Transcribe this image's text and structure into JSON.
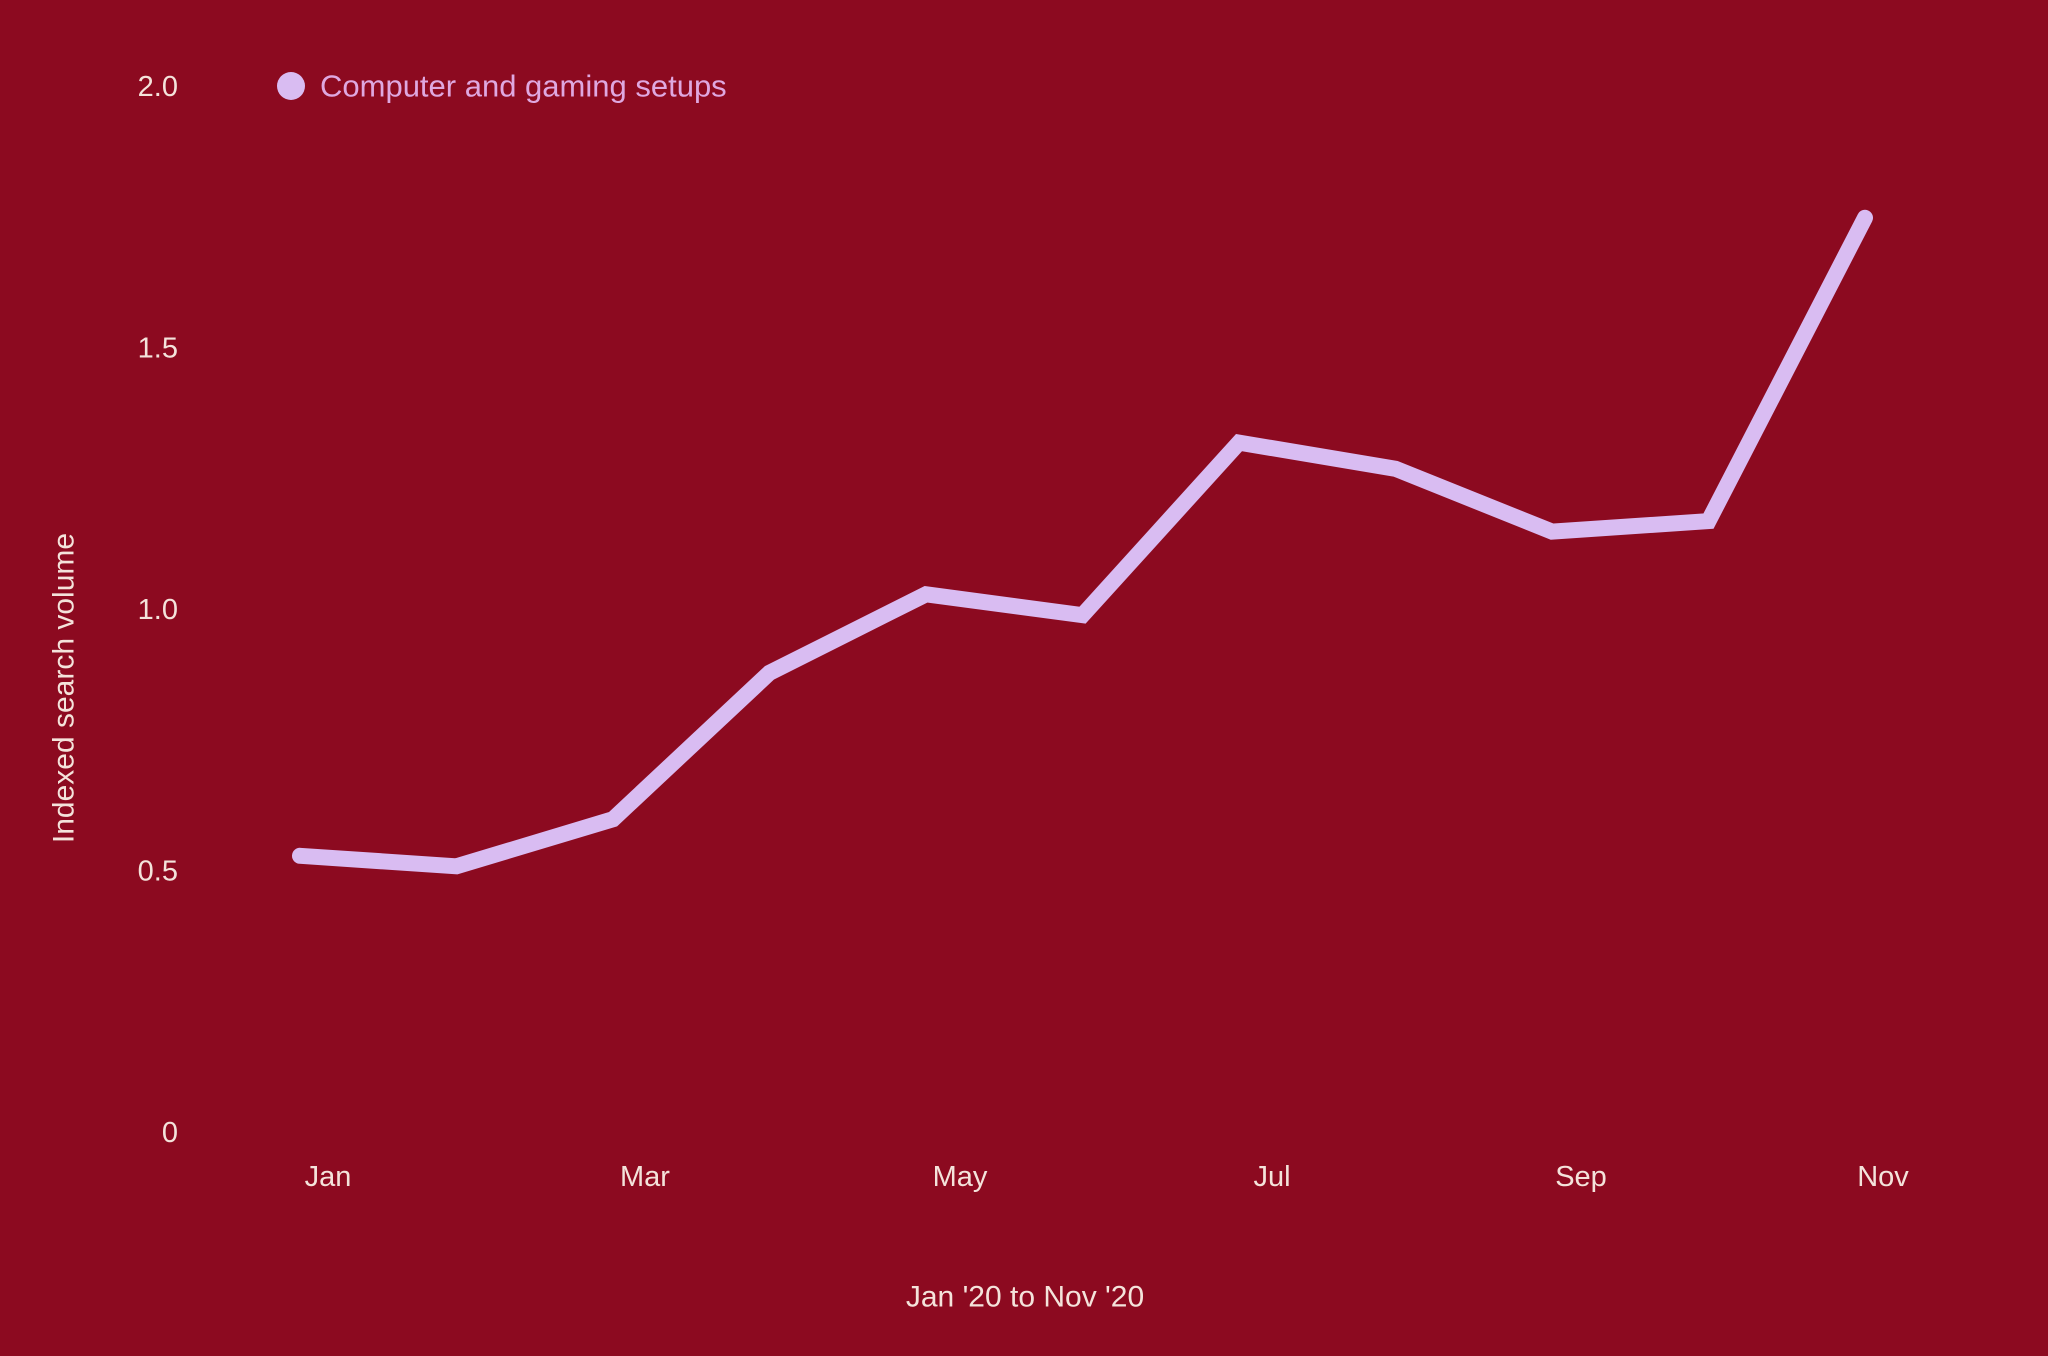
{
  "colors": {
    "background": "#8C0A20",
    "line": "#D9BCF2",
    "legend_text": "#DFA8E0",
    "axis_text": "#F4E3DB"
  },
  "legend": {
    "marker_icon": "circle-icon",
    "label": "Computer and gaming setups"
  },
  "y_axis": {
    "title": "Indexed search volume",
    "ticks": [
      "2.0",
      "1.5",
      "1.0",
      "0.5",
      "0"
    ]
  },
  "x_axis": {
    "title": "Jan '20 to Nov '20",
    "ticks": [
      "Jan",
      "Mar",
      "May",
      "Jul",
      "Sep",
      "Nov"
    ]
  },
  "chart_data": {
    "type": "line",
    "title": "",
    "x": [
      "Jan",
      "Feb",
      "Mar",
      "Apr",
      "May",
      "Jun",
      "Jul",
      "Aug",
      "Sep",
      "Oct",
      "Nov"
    ],
    "series": [
      {
        "name": "Computer and gaming setups",
        "values": [
          0.53,
          0.51,
          0.6,
          0.88,
          1.03,
          0.99,
          1.32,
          1.27,
          1.15,
          1.17,
          1.75
        ]
      }
    ],
    "xlabel": "Jan '20 to Nov '20",
    "ylabel": "Indexed search volume",
    "ylim": [
      0,
      2
    ],
    "xrange_months": 11,
    "grid": false,
    "legend_position": "top-left"
  }
}
